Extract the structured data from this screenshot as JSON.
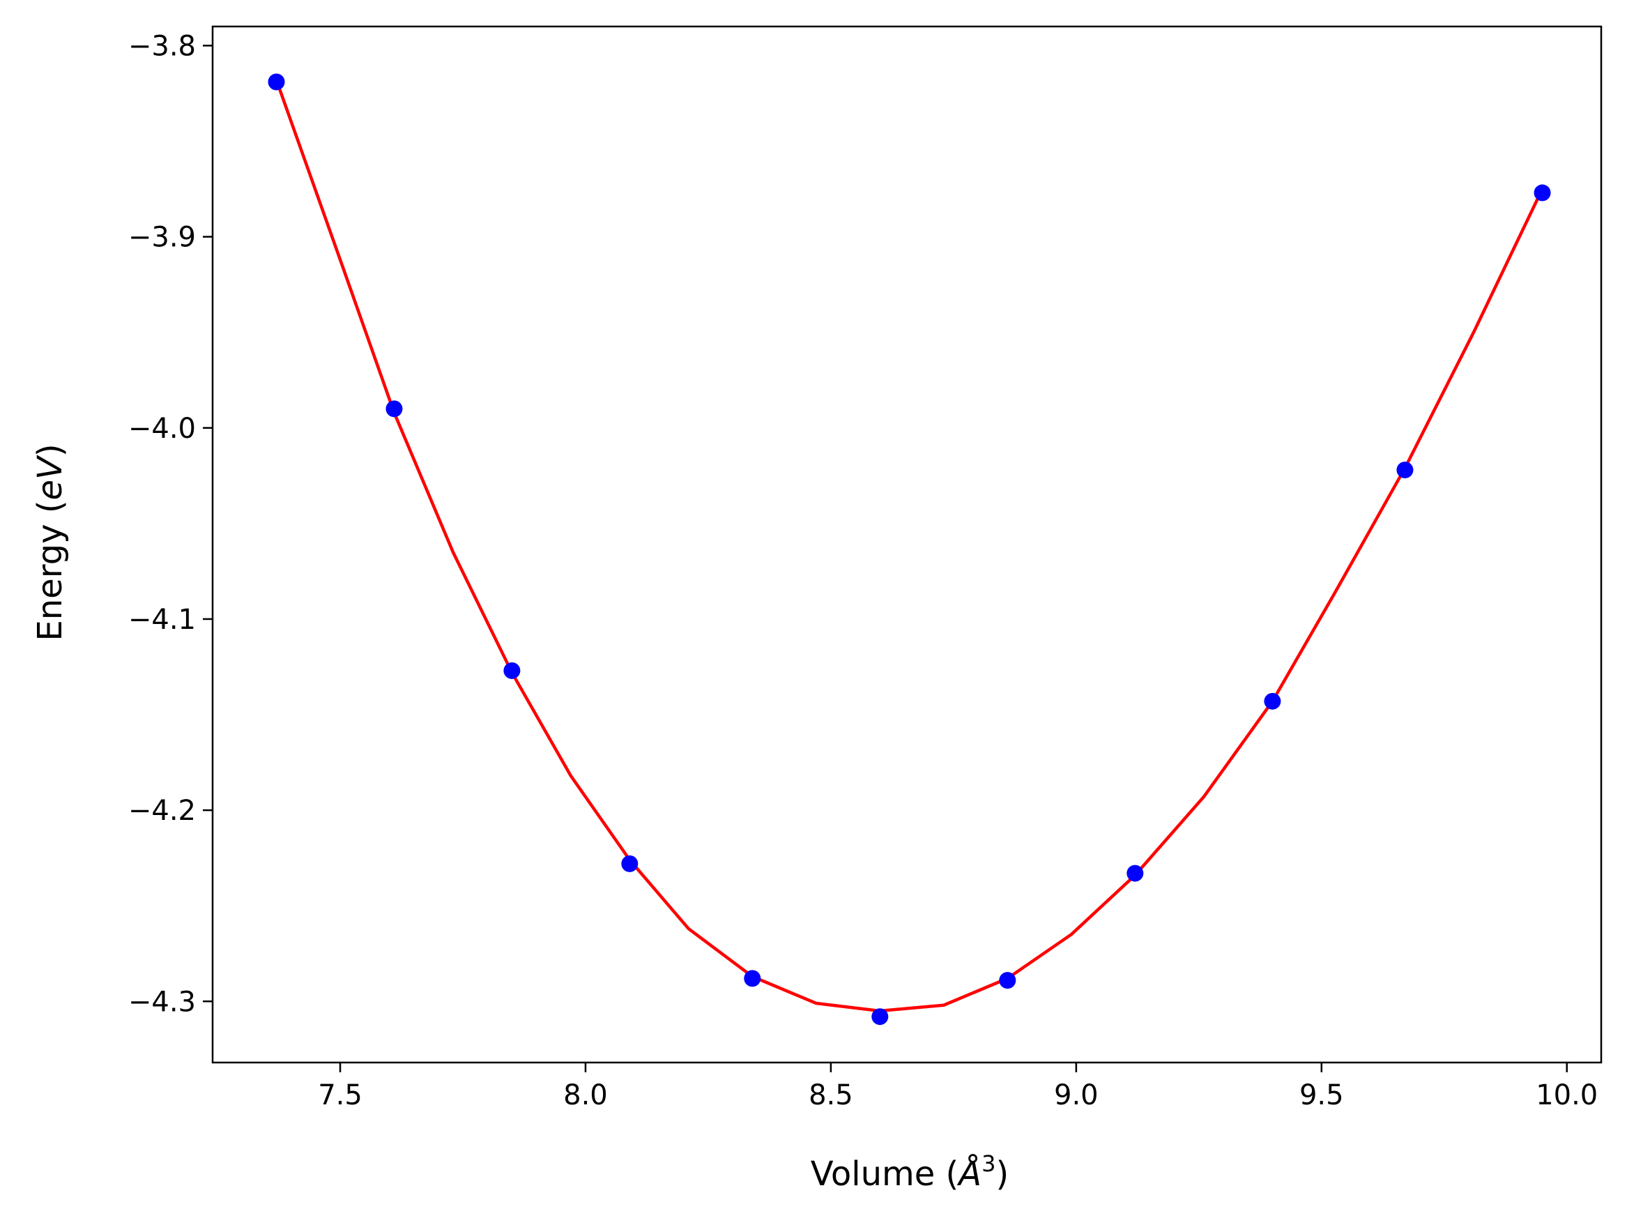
{
  "chart_data": {
    "type": "scatter",
    "title": "",
    "xlabel_main": "Volume (",
    "xlabel_unit": "Å",
    "xlabel_exp": "3",
    "xlabel_close": ")",
    "ylabel_main": "Energy (",
    "ylabel_unit": "eV",
    "ylabel_close": ")",
    "xlim": [
      7.24,
      10.07
    ],
    "ylim": [
      -4.332,
      -3.79
    ],
    "x_ticks": [
      7.5,
      8.0,
      8.5,
      9.0,
      9.5,
      10.0
    ],
    "x_tick_labels": [
      "7.5",
      "8.0",
      "8.5",
      "9.0",
      "9.5",
      "10.0"
    ],
    "y_ticks": [
      -3.8,
      -3.9,
      -4.0,
      -4.1,
      -4.2,
      -4.3
    ],
    "y_tick_labels": [
      "−3.8",
      "−3.9",
      "−4.0",
      "−4.1",
      "−4.2",
      "−4.3"
    ],
    "grid": false,
    "series": [
      {
        "kind": "points",
        "color": "#0000ff",
        "x": [
          7.37,
          7.61,
          7.85,
          8.09,
          8.34,
          8.6,
          8.86,
          9.12,
          9.4,
          9.67,
          9.95
        ],
        "y": [
          -3.819,
          -3.99,
          -4.127,
          -4.228,
          -4.288,
          -4.308,
          -4.289,
          -4.233,
          -4.143,
          -4.022,
          -3.877
        ]
      },
      {
        "kind": "line",
        "color": "#ff0000",
        "x": [
          7.37,
          7.5,
          7.61,
          7.73,
          7.85,
          7.97,
          8.09,
          8.21,
          8.34,
          8.47,
          8.6,
          8.73,
          8.86,
          8.99,
          9.12,
          9.26,
          9.4,
          9.53,
          9.67,
          9.81,
          9.95
        ],
        "y": [
          -3.818,
          -3.912,
          -3.992,
          -4.065,
          -4.128,
          -4.182,
          -4.226,
          -4.262,
          -4.287,
          -4.301,
          -4.305,
          -4.302,
          -4.288,
          -4.265,
          -4.234,
          -4.193,
          -4.143,
          -4.085,
          -4.021,
          -3.95,
          -3.875
        ]
      }
    ]
  }
}
